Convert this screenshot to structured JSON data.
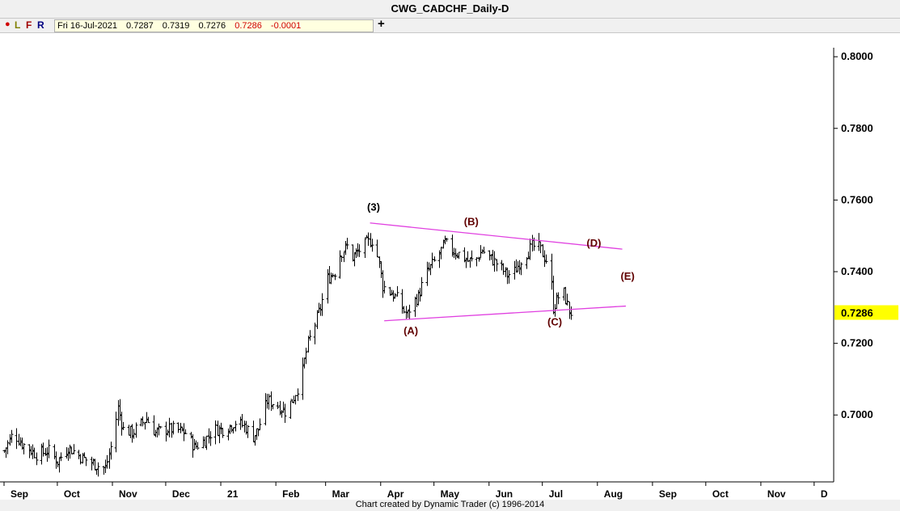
{
  "window": {
    "title": "CWG_CADCHF_Daily-D"
  },
  "toolbar": {
    "btn_l": "L",
    "btn_f": "F",
    "btn_r": "R",
    "date": "Fri 16-Jul-2021",
    "open": "0.7287",
    "high": "0.7319",
    "low": "0.7276",
    "close": "0.7286",
    "change": "-0.0001",
    "add_label": "+"
  },
  "footer": {
    "credit": "Chart created by Dynamic Trader  (c) 1996-2014"
  },
  "colors": {
    "wave_label": "#600000",
    "trend_line": "#e040e0",
    "price_tag_bg": "#ffff00",
    "bars": "#000000"
  },
  "chart_data": {
    "type": "ohlc",
    "symbol": "CWG_CADCHF",
    "timeframe": "Daily",
    "ylim": [
      0.682,
      0.805
    ],
    "y_ticks": [
      "0.8000",
      "0.7800",
      "0.7600",
      "0.7400",
      "0.7200",
      "0.7000"
    ],
    "x_labels": [
      "Sep",
      "Oct",
      "Nov",
      "Dec",
      "21",
      "Feb",
      "Mar",
      "Apr",
      "May",
      "Jun",
      "Jul",
      "Aug",
      "Sep",
      "Oct",
      "Nov",
      "D"
    ],
    "x_label_days": [
      0,
      30,
      61,
      91,
      122,
      153,
      181,
      212,
      242,
      273,
      303,
      334,
      365,
      395,
      426,
      456
    ],
    "last_price": {
      "label": "0.7286",
      "value": 0.7286
    },
    "key_points": [
      [
        0,
        0.69
      ],
      [
        5,
        0.695
      ],
      [
        10,
        0.692
      ],
      [
        18,
        0.689
      ],
      [
        25,
        0.69
      ],
      [
        30,
        0.687
      ],
      [
        36,
        0.691
      ],
      [
        44,
        0.688
      ],
      [
        52,
        0.686
      ],
      [
        57,
        0.685
      ],
      [
        61,
        0.693
      ],
      [
        64,
        0.702
      ],
      [
        67,
        0.696
      ],
      [
        72,
        0.695
      ],
      [
        80,
        0.699
      ],
      [
        85,
        0.695
      ],
      [
        90,
        0.696
      ],
      [
        96,
        0.696
      ],
      [
        102,
        0.695
      ],
      [
        107,
        0.691
      ],
      [
        113,
        0.693
      ],
      [
        118,
        0.696
      ],
      [
        124,
        0.696
      ],
      [
        130,
        0.698
      ],
      [
        135,
        0.697
      ],
      [
        140,
        0.694
      ],
      [
        143,
        0.696
      ],
      [
        148,
        0.704
      ],
      [
        153,
        0.703
      ],
      [
        158,
        0.701
      ],
      [
        163,
        0.705
      ],
      [
        167,
        0.71
      ],
      [
        171,
        0.72
      ],
      [
        174,
        0.724
      ],
      [
        178,
        0.73
      ],
      [
        182,
        0.738
      ],
      [
        186,
        0.74
      ],
      [
        189,
        0.745
      ],
      [
        193,
        0.747
      ],
      [
        196,
        0.744
      ],
      [
        200,
        0.746
      ],
      [
        204,
        0.748
      ],
      [
        208,
        0.749
      ],
      [
        211,
        0.742
      ],
      [
        213,
        0.736
      ],
      [
        218,
        0.734
      ],
      [
        222,
        0.732
      ],
      [
        225,
        0.729
      ],
      [
        227,
        0.728
      ],
      [
        229,
        0.731
      ],
      [
        233,
        0.733
      ],
      [
        237,
        0.739
      ],
      [
        241,
        0.742
      ],
      [
        245,
        0.745
      ],
      [
        248,
        0.748
      ],
      [
        252,
        0.746
      ],
      [
        256,
        0.745
      ],
      [
        261,
        0.743
      ],
      [
        265,
        0.743
      ],
      [
        269,
        0.746
      ],
      [
        273,
        0.744
      ],
      [
        278,
        0.742
      ],
      [
        283,
        0.739
      ],
      [
        287,
        0.74
      ],
      [
        292,
        0.744
      ],
      [
        297,
        0.747
      ],
      [
        301,
        0.747
      ],
      [
        304,
        0.744
      ],
      [
        307,
        0.742
      ],
      [
        309,
        0.73
      ],
      [
        312,
        0.733
      ],
      [
        315,
        0.734
      ],
      [
        318,
        0.729
      ],
      [
        319,
        0.7286
      ]
    ],
    "trend_lines": [
      {
        "from": [
          206,
          0.7536
        ],
        "to": [
          348,
          0.7463
        ]
      },
      {
        "from": [
          214,
          0.7263
        ],
        "to": [
          350,
          0.7304
        ]
      }
    ],
    "wave_labels": [
      {
        "text": "(3)",
        "day": 208,
        "price": 0.757
      },
      {
        "text": "(B)",
        "day": 263,
        "price": 0.753
      },
      {
        "text": "(A)",
        "day": 229,
        "price": 0.7225
      },
      {
        "text": "(C)",
        "day": 310,
        "price": 0.725
      },
      {
        "text": "(D)",
        "day": 332,
        "price": 0.747
      },
      {
        "text": "(E)",
        "day": 351,
        "price": 0.7378
      }
    ]
  }
}
